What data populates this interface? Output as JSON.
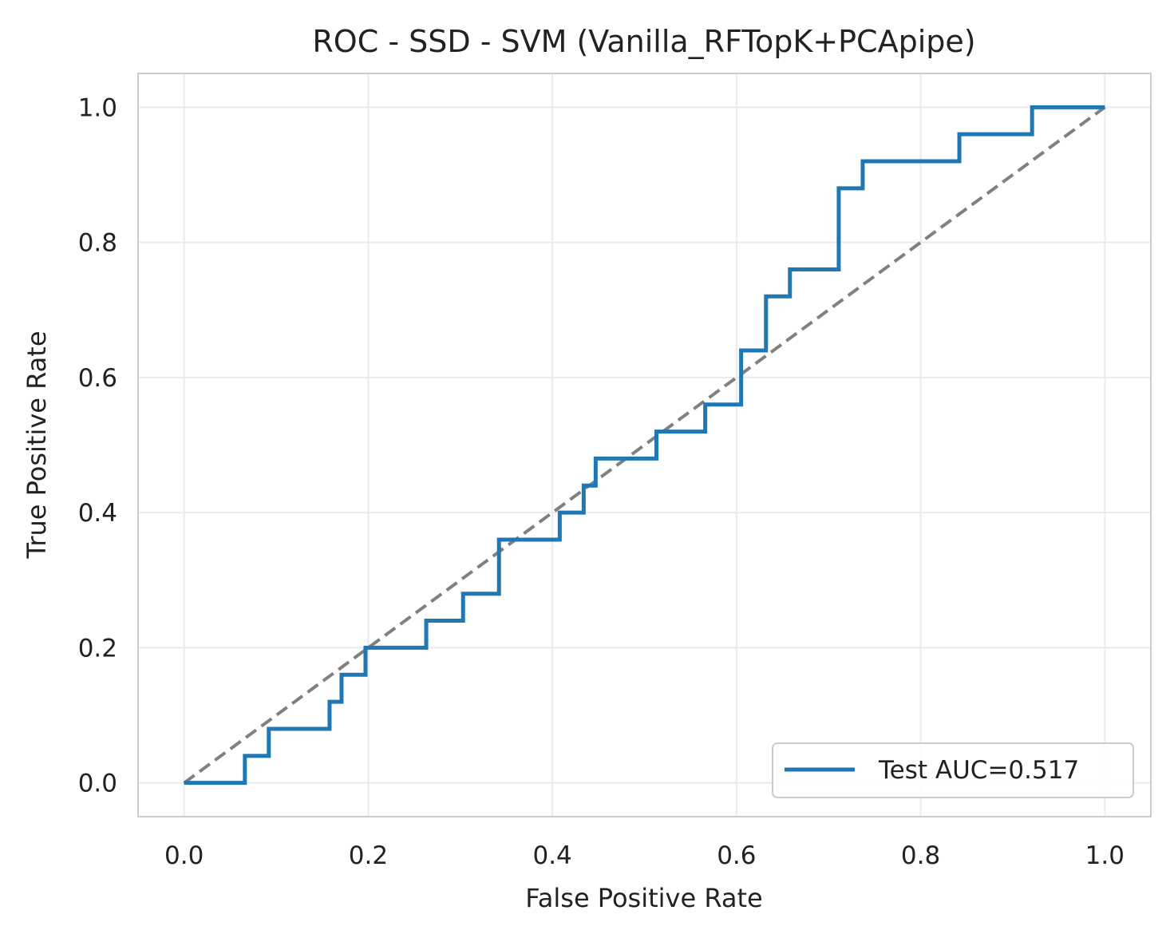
{
  "chart_data": {
    "type": "line",
    "title": "ROC - SSD - SVM (Vanilla_RFTopK+PCApipe)",
    "xlabel": "False Positive Rate",
    "ylabel": "True Positive Rate",
    "xlim": [
      -0.05,
      1.05
    ],
    "ylim": [
      -0.05,
      1.05
    ],
    "xticks": [
      0.0,
      0.2,
      0.4,
      0.6,
      0.8,
      1.0
    ],
    "yticks": [
      0.0,
      0.2,
      0.4,
      0.6,
      0.8,
      1.0
    ],
    "xtick_labels": [
      "0.0",
      "0.2",
      "0.4",
      "0.6",
      "0.8",
      "1.0"
    ],
    "ytick_labels": [
      "0.0",
      "0.2",
      "0.4",
      "0.6",
      "0.8",
      "1.0"
    ],
    "grid": true,
    "legend_position": "lower-right",
    "series": [
      {
        "name": "Test AUC=0.517",
        "color": "#1f77b4",
        "style": "step",
        "x": [
          0.0,
          0.066,
          0.066,
          0.092,
          0.092,
          0.158,
          0.158,
          0.171,
          0.171,
          0.197,
          0.197,
          0.263,
          0.263,
          0.303,
          0.303,
          0.342,
          0.342,
          0.408,
          0.408,
          0.434,
          0.434,
          0.447,
          0.447,
          0.513,
          0.513,
          0.566,
          0.566,
          0.605,
          0.605,
          0.632,
          0.632,
          0.658,
          0.658,
          0.711,
          0.711,
          0.737,
          0.737,
          0.842,
          0.842,
          0.921,
          0.921,
          1.0
        ],
        "y": [
          0.0,
          0.0,
          0.04,
          0.04,
          0.08,
          0.08,
          0.12,
          0.12,
          0.16,
          0.16,
          0.2,
          0.2,
          0.24,
          0.24,
          0.28,
          0.28,
          0.36,
          0.36,
          0.4,
          0.4,
          0.44,
          0.44,
          0.48,
          0.48,
          0.52,
          0.52,
          0.56,
          0.56,
          0.64,
          0.64,
          0.72,
          0.72,
          0.76,
          0.76,
          0.88,
          0.88,
          0.92,
          0.92,
          0.96,
          0.96,
          1.0,
          1.0
        ]
      },
      {
        "name": "",
        "color": "#808080",
        "style": "dashed",
        "x": [
          0.0,
          1.0
        ],
        "y": [
          0.0,
          1.0
        ]
      }
    ]
  }
}
